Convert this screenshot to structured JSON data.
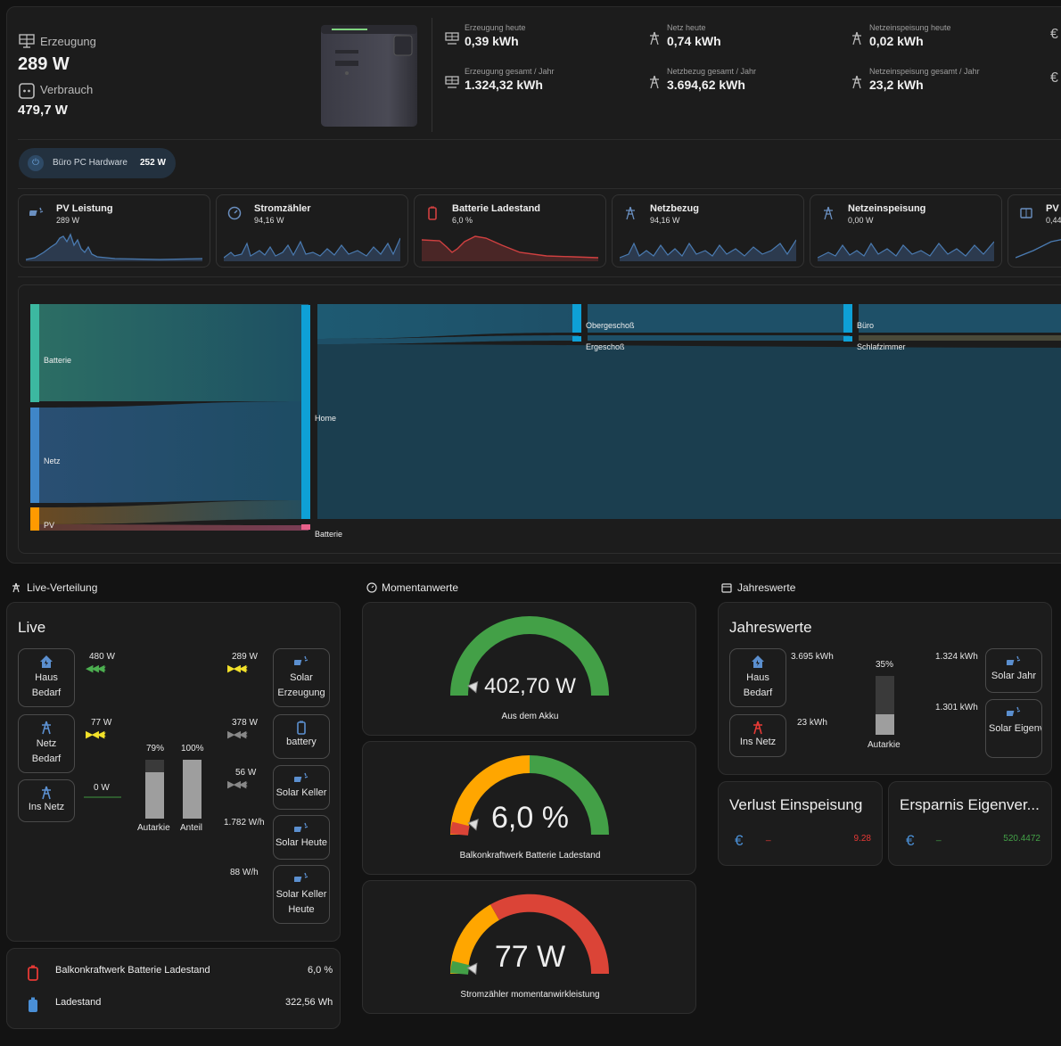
{
  "header": {
    "erzeugung_label": "Erzeugung",
    "erzeugung_value": "289 W",
    "verbrauch_label": "Verbrauch",
    "verbrauch_value": "479,7 W"
  },
  "stats": [
    {
      "label": "Erzeugung heute",
      "value": "0,39 kWh",
      "icon": "solar-panel-icon"
    },
    {
      "label": "Netz heute",
      "value": "0,74 kWh",
      "icon": "transmission-tower-icon"
    },
    {
      "label": "Netzeinspeisung heute",
      "value": "0,02 kWh",
      "icon": "transmission-tower-export-icon"
    },
    {
      "label": "Erzeugung gesamt / Jahr",
      "value": "1.324,32 kWh",
      "icon": "solar-panel-icon"
    },
    {
      "label": "Netzbezug gesamt / Jahr",
      "value": "3.694,62 kWh",
      "icon": "transmission-tower-icon"
    },
    {
      "label": "Netzeinspeisung gesamt / Jahr",
      "value": "23,2 kWh",
      "icon": "transmission-tower-export-icon"
    }
  ],
  "chip": {
    "label": "Büro PC Hardware",
    "value": "252 W"
  },
  "mini_cards": [
    {
      "title": "PV Leistung",
      "value": "289 W",
      "icon": "solar-power-icon",
      "color": "#4a7ab0"
    },
    {
      "title": "Stromzähler",
      "value": "94,16 W",
      "icon": "gauge-icon",
      "color": "#4a7ab0"
    },
    {
      "title": "Batterie Ladestand",
      "value": "6,0 %",
      "icon": "battery-alert-icon",
      "color": "#d04040"
    },
    {
      "title": "Netzbezug",
      "value": "94,16 W",
      "icon": "transmission-tower-import-icon",
      "color": "#4a7ab0"
    },
    {
      "title": "Netzeinspeisung",
      "value": "0,00 W",
      "icon": "transmission-tower-export-icon",
      "color": "#4a7ab0"
    },
    {
      "title": "PV I",
      "value": "0,44",
      "icon": "solar-panel-icon",
      "color": "#4a7ab0"
    }
  ],
  "sankey": {
    "sources": [
      "Batterie",
      "Netz",
      "PV"
    ],
    "middle": [
      "Home",
      "Batterie"
    ],
    "targets": [
      "Obergeschoß",
      "Ergeschoß",
      "Büro",
      "Schlafzimmer"
    ]
  },
  "sections": {
    "live": "Live-Verteilung",
    "moment": "Momentanwerte",
    "jahr": "Jahreswerte"
  },
  "live": {
    "title": "Live",
    "haus_bedarf": "Haus Bedarf",
    "netz_bedarf": "Netz Bedarf",
    "ins_netz": "Ins Netz",
    "haus_watt": "480 W",
    "netz_watt": "77 W",
    "ins_netz_watt": "0 W",
    "autarkie_pct": "79%",
    "anteil_pct": "100%",
    "autarkie_label": "Autarkie",
    "anteil_label": "Anteil",
    "autarkie_fill": 0.79,
    "anteil_fill": 1.0,
    "solar_erzeugung": "Solar Erzeugung",
    "solar_erzeugung_watt": "289 W",
    "battery": "battery",
    "battery_watt": "378 W",
    "solar_keller": "Solar Keller",
    "solar_keller_watt": "56 W",
    "solar_heute": "Solar Heute",
    "solar_heute_val": "1.782 W/h",
    "solar_keller_heute": "Solar Keller Heute",
    "solar_keller_heute_val": "88 W/h"
  },
  "battery_card": {
    "row1_label": "Balkonkraftwerk Batterie Ladestand",
    "row1_value": "6,0 %",
    "row2_label": "Ladestand",
    "row2_value": "322,56 Wh"
  },
  "gauges": [
    {
      "value": "402,70 W",
      "label": "Aus dem Akku",
      "level": 0.05
    },
    {
      "value": "6,0 %",
      "label": "Balkonkraftwerk Batterie Ladestand",
      "level": 0.06
    },
    {
      "value": "77 W",
      "label": "Stromzähler momentanwirkleistung",
      "level": 0.03
    }
  ],
  "jahr": {
    "title": "Jahreswerte",
    "haus_bedarf": "Haus Bedarf",
    "ins_netz": "Ins Netz",
    "haus_val": "3.695 kWh",
    "netz_val": "23 kWh",
    "autarkie_pct": "35%",
    "autarkie_label": "Autarkie",
    "autarkie_fill": 0.35,
    "solar_jahr": "Solar Jahr",
    "solar_jahr_val": "1.324 kWh",
    "solar_eigen": "Solar Eigenverbrau",
    "solar_eigen_val": "1.301 kWh"
  },
  "verlust": {
    "title": "Verlust Einspeisung",
    "value": "9.28",
    "dash": "_"
  },
  "ersparnis": {
    "title": "Ersparnis Eigenver...",
    "value": "520.4472",
    "dash": "_"
  },
  "colors": {
    "green": "#43a047",
    "orange": "#ffa600",
    "red": "#db4437",
    "blue": "#4a8fd6"
  }
}
